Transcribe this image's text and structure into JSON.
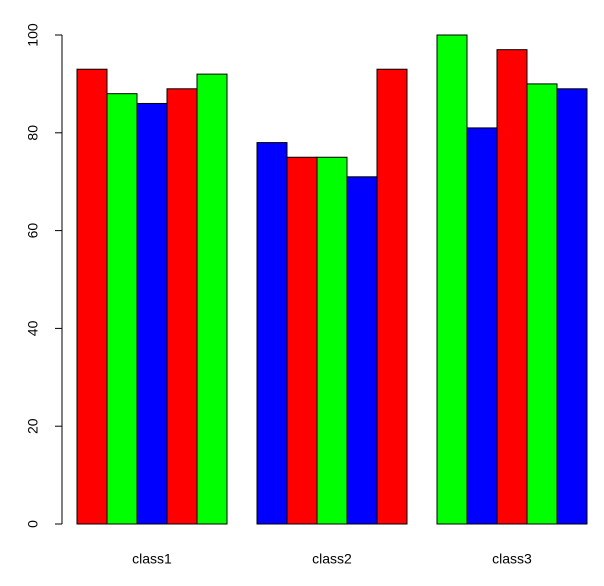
{
  "chart_data": {
    "type": "grouped-bar",
    "categories": [
      "class1",
      "class2",
      "class3"
    ],
    "values": [
      [
        93,
        88,
        86,
        89,
        92
      ],
      [
        78,
        75,
        75,
        71,
        93
      ],
      [
        100,
        81,
        97,
        90,
        89
      ]
    ],
    "colors": [
      "#ff0000",
      "#00ff00",
      "#0000ff"
    ],
    "ylim": [
      0,
      100
    ],
    "yticks": [
      0,
      20,
      40,
      60,
      80,
      100
    ]
  }
}
